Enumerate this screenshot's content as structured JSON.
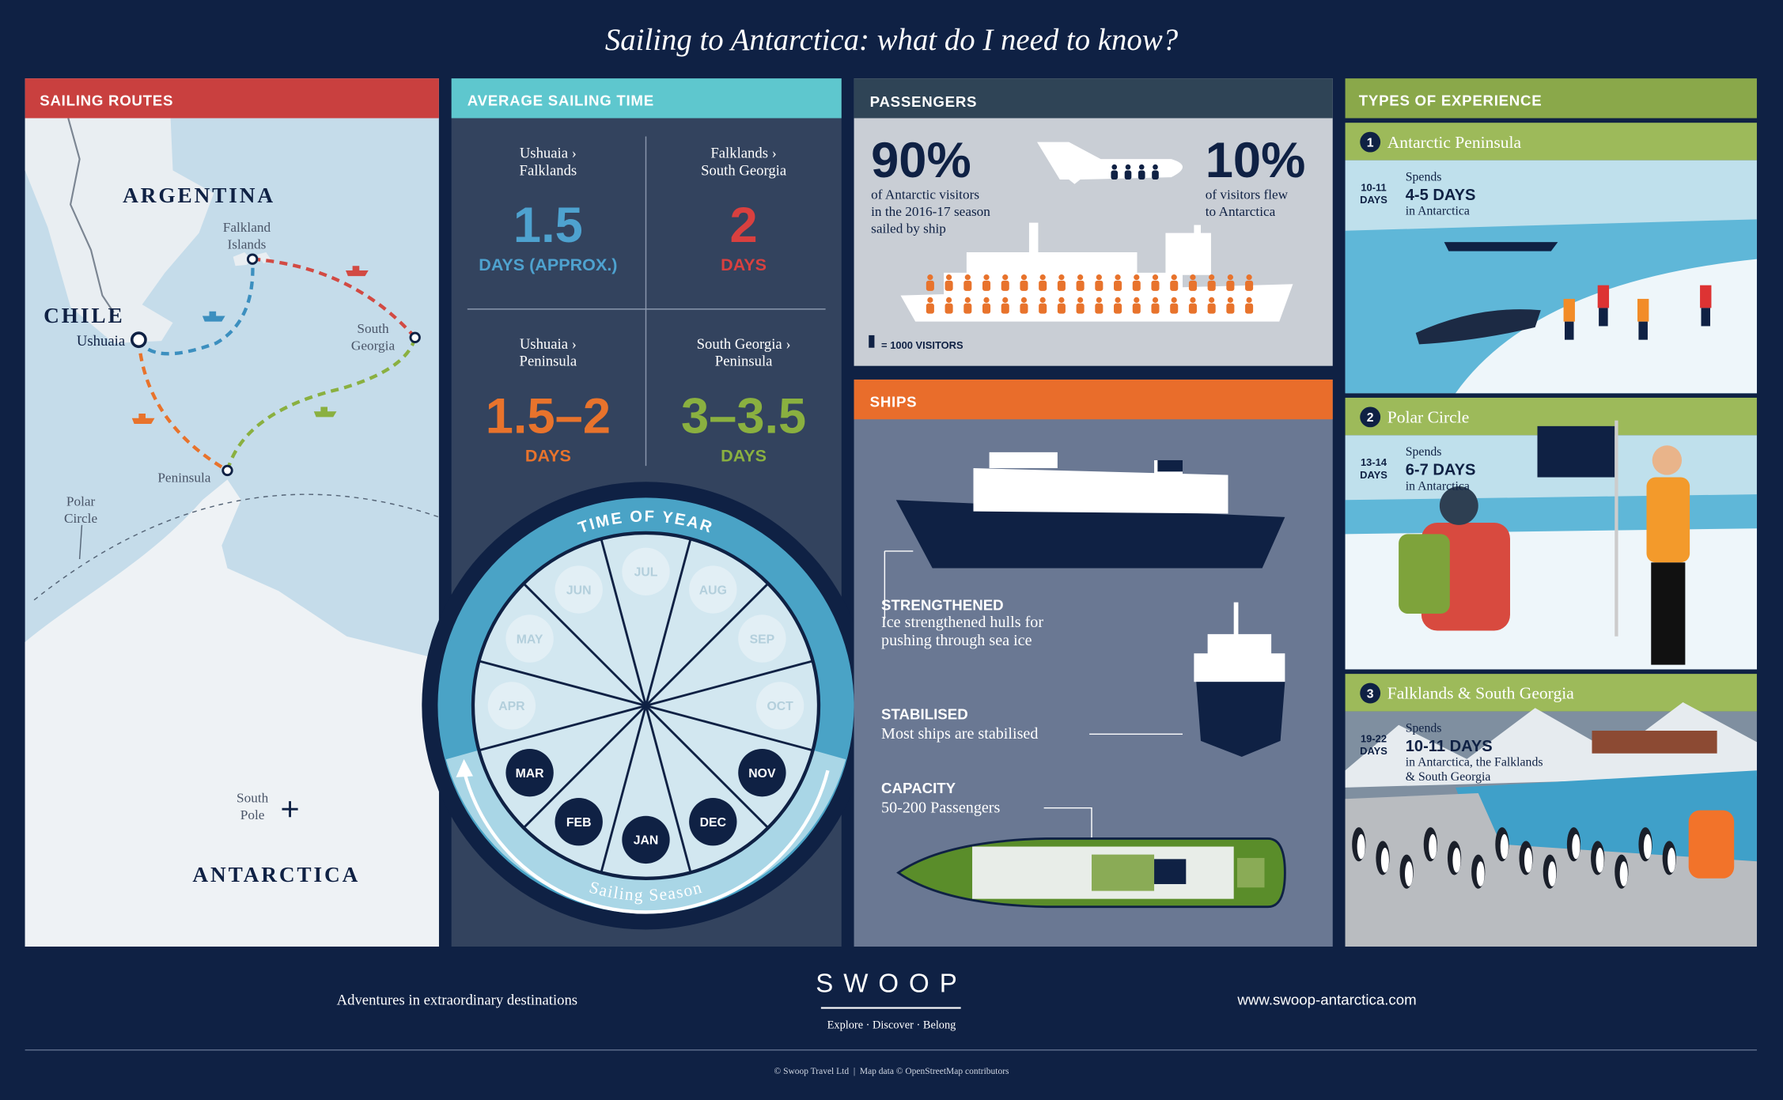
{
  "title": "Sailing to Antarctica: what do I need to know?",
  "sailing_routes": {
    "heading": "SAILING ROUTES",
    "places": {
      "argentina": "ARGENTINA",
      "chile": "CHILE",
      "ushuaia": "Ushuaia",
      "falkland_islands": [
        "Falkland",
        "Islands"
      ],
      "south_georgia": [
        "South",
        "Georgia"
      ],
      "peninsula": "Peninsula",
      "polar_circle": [
        "Polar",
        "Circle"
      ],
      "south_pole": [
        "South",
        "Pole"
      ],
      "antarctica": "ANTARCTICA"
    }
  },
  "average_sailing_time": {
    "heading": "AVERAGE SAILING TIME",
    "routes": [
      {
        "route": [
          "Ushuaia ›",
          "Falklands"
        ],
        "value": "1.5",
        "unit": "DAYS (APPROX.)",
        "color": "#4ea2cf"
      },
      {
        "route": [
          "Falklands ›",
          "South Georgia"
        ],
        "value": "2",
        "unit": "DAYS",
        "color": "#d9403f"
      },
      {
        "route": [
          "Ushuaia ›",
          "Peninsula"
        ],
        "value": "1.5–2",
        "unit": "DAYS",
        "color": "#e8732c"
      },
      {
        "route": [
          "South Georgia ›",
          "Peninsula"
        ],
        "value": "3–3.5",
        "unit": "DAYS",
        "color": "#8ab040"
      }
    ],
    "wheel": {
      "label": "TIME OF YEAR",
      "season_label": "Sailing Season",
      "months": [
        {
          "label": "JAN",
          "in_season": true
        },
        {
          "label": "FEB",
          "in_season": true
        },
        {
          "label": "MAR",
          "in_season": true
        },
        {
          "label": "APR",
          "in_season": false
        },
        {
          "label": "MAY",
          "in_season": false
        },
        {
          "label": "JUN",
          "in_season": false
        },
        {
          "label": "JUL",
          "in_season": false
        },
        {
          "label": "AUG",
          "in_season": false
        },
        {
          "label": "SEP",
          "in_season": false
        },
        {
          "label": "OCT",
          "in_season": false
        },
        {
          "label": "NOV",
          "in_season": true
        },
        {
          "label": "DEC",
          "in_season": true
        }
      ]
    }
  },
  "passengers": {
    "heading": "PASSENGERS",
    "ship_share": {
      "value": "90%",
      "text": [
        "of Antarctic visitors",
        "in the 2016-17 season",
        "sailed by ship"
      ]
    },
    "flew_share": {
      "value": "10%",
      "text": [
        "of visitors flew",
        "to Antarctica"
      ]
    },
    "legend": "= 1000 VISITORS"
  },
  "ships": {
    "heading": "SHIPS",
    "features": [
      {
        "title": "STRENGTHENED",
        "text": [
          "Ice strengthened hulls for",
          "pushing through sea ice"
        ]
      },
      {
        "title": "STABILISED",
        "text": [
          "Most ships are stabilised"
        ]
      },
      {
        "title": "CAPACITY",
        "text": [
          "50-200 Passengers"
        ]
      }
    ]
  },
  "types_of_experience": {
    "heading": "TYPES OF EXPERIENCE",
    "items": [
      {
        "number": "1",
        "name": "Antarctic Peninsula",
        "duration": [
          "10-11",
          "DAYS"
        ],
        "spends": "Spends",
        "days": "4-5 DAYS",
        "where": [
          "in Antarctica"
        ]
      },
      {
        "number": "2",
        "name": "Polar Circle",
        "duration": [
          "13-14",
          "DAYS"
        ],
        "spends": "Spends",
        "days": "6-7 DAYS",
        "where": [
          "in Antarctica"
        ]
      },
      {
        "number": "3",
        "name": "Falklands & South Georgia",
        "duration": [
          "19-22",
          "DAYS"
        ],
        "spends": "Spends",
        "days": "10-11 DAYS",
        "where": [
          "in Antarctica, the Falklands",
          "& South Georgia"
        ]
      }
    ]
  },
  "footer": {
    "tagline": "Adventures in extraordinary destinations",
    "logo": "SWOOP",
    "motto": "Explore · Discover · Belong",
    "url": "www.swoop-antarctica.com",
    "credits": "© Swoop Travel Ltd  |  Map data © OpenStreetMap contributors"
  }
}
